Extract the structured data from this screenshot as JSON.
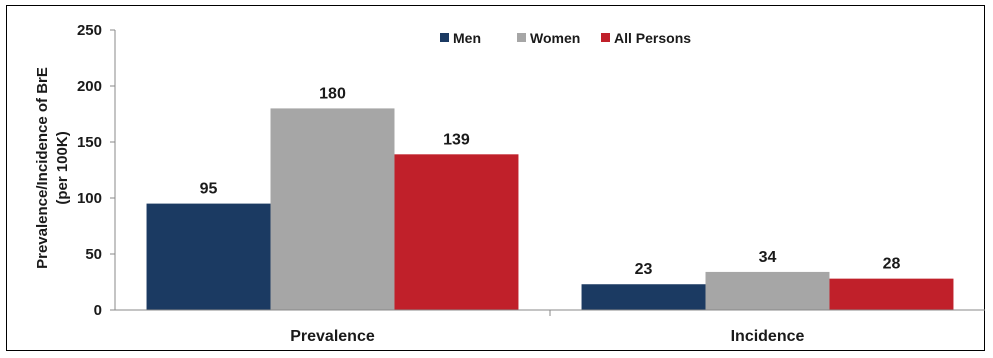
{
  "chart_data": {
    "type": "bar",
    "categories": [
      "Prevalence",
      "Incidence"
    ],
    "series": [
      {
        "name": "Men",
        "values": [
          95,
          23
        ],
        "color": "#1b3a62"
      },
      {
        "name": "Women",
        "values": [
          180,
          34
        ],
        "color": "#a6a6a6"
      },
      {
        "name": "All Persons",
        "values": [
          139,
          28
        ],
        "color": "#c0202a"
      }
    ],
    "ylabel_lines": [
      "Prevalence/Incidence of BrE",
      "(per 100K)"
    ],
    "ylim": [
      0,
      250
    ],
    "yticks": [
      0,
      50,
      100,
      150,
      200,
      250
    ],
    "legend_position": "top-center",
    "grid": false
  }
}
